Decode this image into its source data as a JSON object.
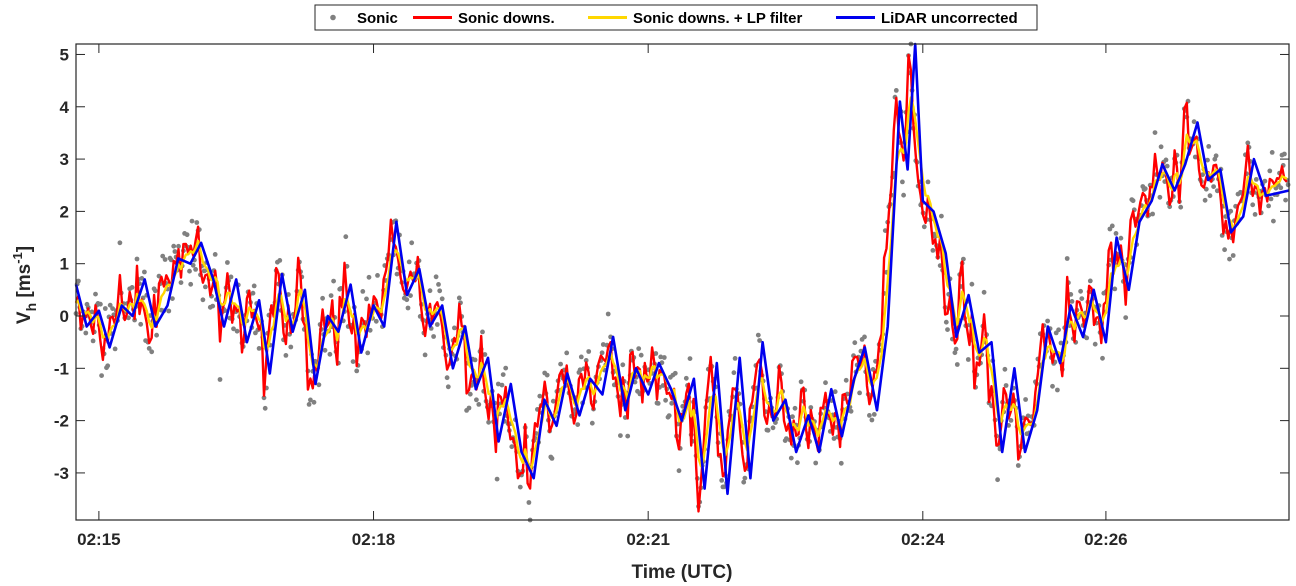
{
  "chart_data": {
    "type": "line",
    "xlabel": "Time (UTC)",
    "ylabel": "V",
    "ylabel_sub": "h",
    "ylabel_unit_open": " [ms",
    "ylabel_unit_sup": "-1",
    "ylabel_unit_close": "]",
    "xlim": [
      "02:14:45",
      "02:28:00"
    ],
    "ylim": [
      -3.9,
      5.2
    ],
    "x_ticks": [
      "02:15",
      "02:18",
      "02:21",
      "02:24",
      "02:26"
    ],
    "y_ticks": [
      -3,
      -2,
      -1,
      0,
      1,
      2,
      3,
      4,
      5
    ],
    "grid": false,
    "legend_position": "top-center",
    "colors": {
      "sonic": "#808080",
      "sonic_downs": "#ff0000",
      "sonic_lp": "#ffd700",
      "lidar": "#0000ee",
      "axis": "#262626"
    },
    "series": [
      {
        "name": "Sonic",
        "style": "dots",
        "color": "#808080"
      },
      {
        "name": "Sonic downs.",
        "style": "line",
        "color": "#ff0000"
      },
      {
        "name": "Sonic downs. + LP filter",
        "style": "line",
        "color": "#ffd700"
      },
      {
        "name": "LiDAR uncorrected",
        "style": "line",
        "color": "#0000ee",
        "points": [
          [
            "02:14:45",
            0.6
          ],
          [
            "02:14:52",
            -0.2
          ],
          [
            "02:15:00",
            0.1
          ],
          [
            "02:15:07",
            -0.6
          ],
          [
            "02:15:15",
            0.2
          ],
          [
            "02:15:22",
            0.0
          ],
          [
            "02:15:30",
            0.7
          ],
          [
            "02:15:37",
            -0.2
          ],
          [
            "02:15:45",
            0.2
          ],
          [
            "02:15:52",
            1.1
          ],
          [
            "02:16:00",
            1.0
          ],
          [
            "02:16:07",
            1.4
          ],
          [
            "02:16:15",
            0.7
          ],
          [
            "02:16:22",
            -0.2
          ],
          [
            "02:16:30",
            0.7
          ],
          [
            "02:16:37",
            -0.5
          ],
          [
            "02:16:45",
            0.3
          ],
          [
            "02:16:52",
            -1.1
          ],
          [
            "02:17:00",
            0.8
          ],
          [
            "02:17:07",
            -0.3
          ],
          [
            "02:17:15",
            0.5
          ],
          [
            "02:17:22",
            -1.3
          ],
          [
            "02:17:30",
            0.0
          ],
          [
            "02:17:37",
            -0.3
          ],
          [
            "02:17:45",
            0.6
          ],
          [
            "02:17:52",
            -0.7
          ],
          [
            "02:18:00",
            0.2
          ],
          [
            "02:18:07",
            -0.2
          ],
          [
            "02:18:15",
            1.8
          ],
          [
            "02:18:22",
            0.4
          ],
          [
            "02:18:30",
            0.9
          ],
          [
            "02:18:37",
            -0.2
          ],
          [
            "02:18:45",
            0.2
          ],
          [
            "02:18:52",
            -1.0
          ],
          [
            "02:19:00",
            -0.2
          ],
          [
            "02:19:07",
            -1.4
          ],
          [
            "02:19:15",
            -0.8
          ],
          [
            "02:19:22",
            -2.4
          ],
          [
            "02:19:30",
            -1.3
          ],
          [
            "02:19:37",
            -2.6
          ],
          [
            "02:19:45",
            -3.1
          ],
          [
            "02:19:52",
            -1.6
          ],
          [
            "02:20:00",
            -2.1
          ],
          [
            "02:20:07",
            -1.1
          ],
          [
            "02:20:15",
            -1.9
          ],
          [
            "02:20:22",
            -1.2
          ],
          [
            "02:20:30",
            -1.5
          ],
          [
            "02:20:37",
            -0.4
          ],
          [
            "02:20:45",
            -1.8
          ],
          [
            "02:20:52",
            -1.0
          ],
          [
            "02:21:00",
            -1.5
          ],
          [
            "02:21:07",
            -0.9
          ],
          [
            "02:21:15",
            -1.4
          ],
          [
            "02:21:22",
            -2.0
          ],
          [
            "02:21:30",
            -1.2
          ],
          [
            "02:21:37",
            -3.3
          ],
          [
            "02:21:45",
            -0.9
          ],
          [
            "02:21:52",
            -3.4
          ],
          [
            "02:22:00",
            -0.8
          ],
          [
            "02:22:07",
            -3.1
          ],
          [
            "02:22:15",
            -0.5
          ],
          [
            "02:22:22",
            -2.0
          ],
          [
            "02:22:30",
            -1.6
          ],
          [
            "02:22:37",
            -2.6
          ],
          [
            "02:22:45",
            -1.9
          ],
          [
            "02:22:52",
            -2.6
          ],
          [
            "02:23:00",
            -1.4
          ],
          [
            "02:23:07",
            -2.3
          ],
          [
            "02:23:15",
            -1.2
          ],
          [
            "02:23:22",
            -0.6
          ],
          [
            "02:23:30",
            -1.8
          ],
          [
            "02:23:37",
            -0.2
          ],
          [
            "02:23:45",
            4.1
          ],
          [
            "02:23:50",
            2.8
          ],
          [
            "02:23:55",
            5.2
          ],
          [
            "02:24:00",
            2.2
          ],
          [
            "02:24:07",
            2.0
          ],
          [
            "02:24:15",
            1.2
          ],
          [
            "02:24:22",
            -0.4
          ],
          [
            "02:24:30",
            0.4
          ],
          [
            "02:24:37",
            -0.7
          ],
          [
            "02:24:45",
            -0.5
          ],
          [
            "02:24:52",
            -2.6
          ],
          [
            "02:25:00",
            -1.0
          ],
          [
            "02:25:07",
            -2.6
          ],
          [
            "02:25:15",
            -1.8
          ],
          [
            "02:25:22",
            -0.2
          ],
          [
            "02:25:30",
            -0.9
          ],
          [
            "02:25:37",
            0.2
          ],
          [
            "02:25:45",
            -0.4
          ],
          [
            "02:25:52",
            0.5
          ],
          [
            "02:26:00",
            -0.5
          ],
          [
            "02:26:07",
            1.5
          ],
          [
            "02:26:15",
            0.5
          ],
          [
            "02:26:22",
            1.8
          ],
          [
            "02:26:30",
            2.2
          ],
          [
            "02:26:37",
            2.9
          ],
          [
            "02:26:45",
            2.4
          ],
          [
            "02:26:52",
            2.9
          ],
          [
            "02:27:00",
            3.7
          ],
          [
            "02:27:07",
            2.6
          ],
          [
            "02:27:15",
            2.8
          ],
          [
            "02:27:22",
            1.6
          ],
          [
            "02:27:30",
            1.9
          ],
          [
            "02:27:37",
            3.0
          ],
          [
            "02:27:45",
            2.3
          ],
          [
            "02:28:00",
            2.4
          ]
        ]
      }
    ]
  }
}
